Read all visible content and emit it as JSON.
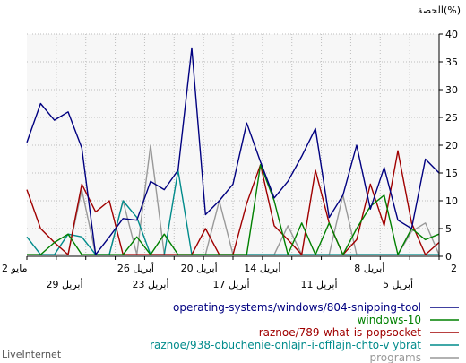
{
  "chart_data": {
    "type": "line",
    "ylabel": "الحصة(%)",
    "ylim": [
      0,
      40
    ],
    "yticks": [
      0,
      5,
      10,
      15,
      20,
      25,
      30,
      35,
      40
    ],
    "x_labels_upper": [
      "2 مايو",
      "26 أبريل",
      "20 أبريل",
      "14 أبريل",
      "8 أبريل",
      "2"
    ],
    "x_labels_lower": [
      "29 أبريل",
      "23 أبريل",
      "17 أبريل",
      "11 أبريل",
      "5 أبريل"
    ],
    "grid": true,
    "legend_position": "bottom-right",
    "series": [
      {
        "name": "operating-systems/windows/804-snipping-tool",
        "color": "#000080",
        "values": [
          20.5,
          27.5,
          24.5,
          26,
          19.5,
          0.3,
          3.5,
          6.8,
          6.5,
          13.5,
          12,
          15.5,
          37.5,
          7.5,
          10,
          13,
          24,
          17,
          10.5,
          13.5,
          18,
          23,
          7,
          11,
          20,
          8.5,
          16,
          6.5,
          5,
          17.5,
          15
        ]
      },
      {
        "name": "windows-10",
        "color": "#008000",
        "values": [
          0.3,
          0.3,
          2.5,
          4,
          0.3,
          0.3,
          0.3,
          0.3,
          3.5,
          0.3,
          4,
          0.3,
          0.3,
          0.3,
          0.3,
          0.3,
          0.3,
          16.5,
          10,
          0.3,
          6,
          0.3,
          6,
          0.3,
          5,
          9,
          11,
          0.3,
          5,
          3,
          4
        ]
      },
      {
        "name": "raznoe/789-what-is-popsocket",
        "color": "#a00000",
        "values": [
          12,
          5,
          2.5,
          0.3,
          13,
          8,
          10,
          0.3,
          0.3,
          0.3,
          0.3,
          0.3,
          0.3,
          5,
          0.3,
          0.3,
          9.5,
          16.5,
          5.5,
          3,
          0.3,
          15.5,
          6,
          0.3,
          3,
          13,
          5.5,
          19,
          6,
          0.3,
          2.5
        ]
      },
      {
        "name": "raznoe/938-obuchenie-onlajn-i-offlajn-chto-v ybrat",
        "color": "#008b8b",
        "values": [
          3.5,
          0.3,
          0.3,
          4,
          3.5,
          0.3,
          0.3,
          10,
          7,
          0.3,
          0.3,
          15.5,
          0.3,
          0.3,
          0.3,
          0.3,
          0.3,
          0.3,
          0.3,
          0.3,
          0.3,
          0.3,
          0.3,
          0.3,
          0.3,
          0.3,
          0.3,
          0.3,
          0.3,
          0.3,
          0.3
        ]
      },
      {
        "name": "programs",
        "color": "#999999",
        "values": [
          0.3,
          0.3,
          0.3,
          0.3,
          12,
          0.3,
          0.3,
          10,
          0.3,
          20,
          0.3,
          0.3,
          0.3,
          0.3,
          10,
          0.3,
          0.3,
          0.3,
          0.3,
          5.5,
          0.3,
          0.3,
          0.3,
          11,
          0.3,
          0.3,
          0.3,
          0.3,
          4.5,
          6,
          0.3
        ]
      }
    ]
  },
  "watermark": "LiveInternet"
}
